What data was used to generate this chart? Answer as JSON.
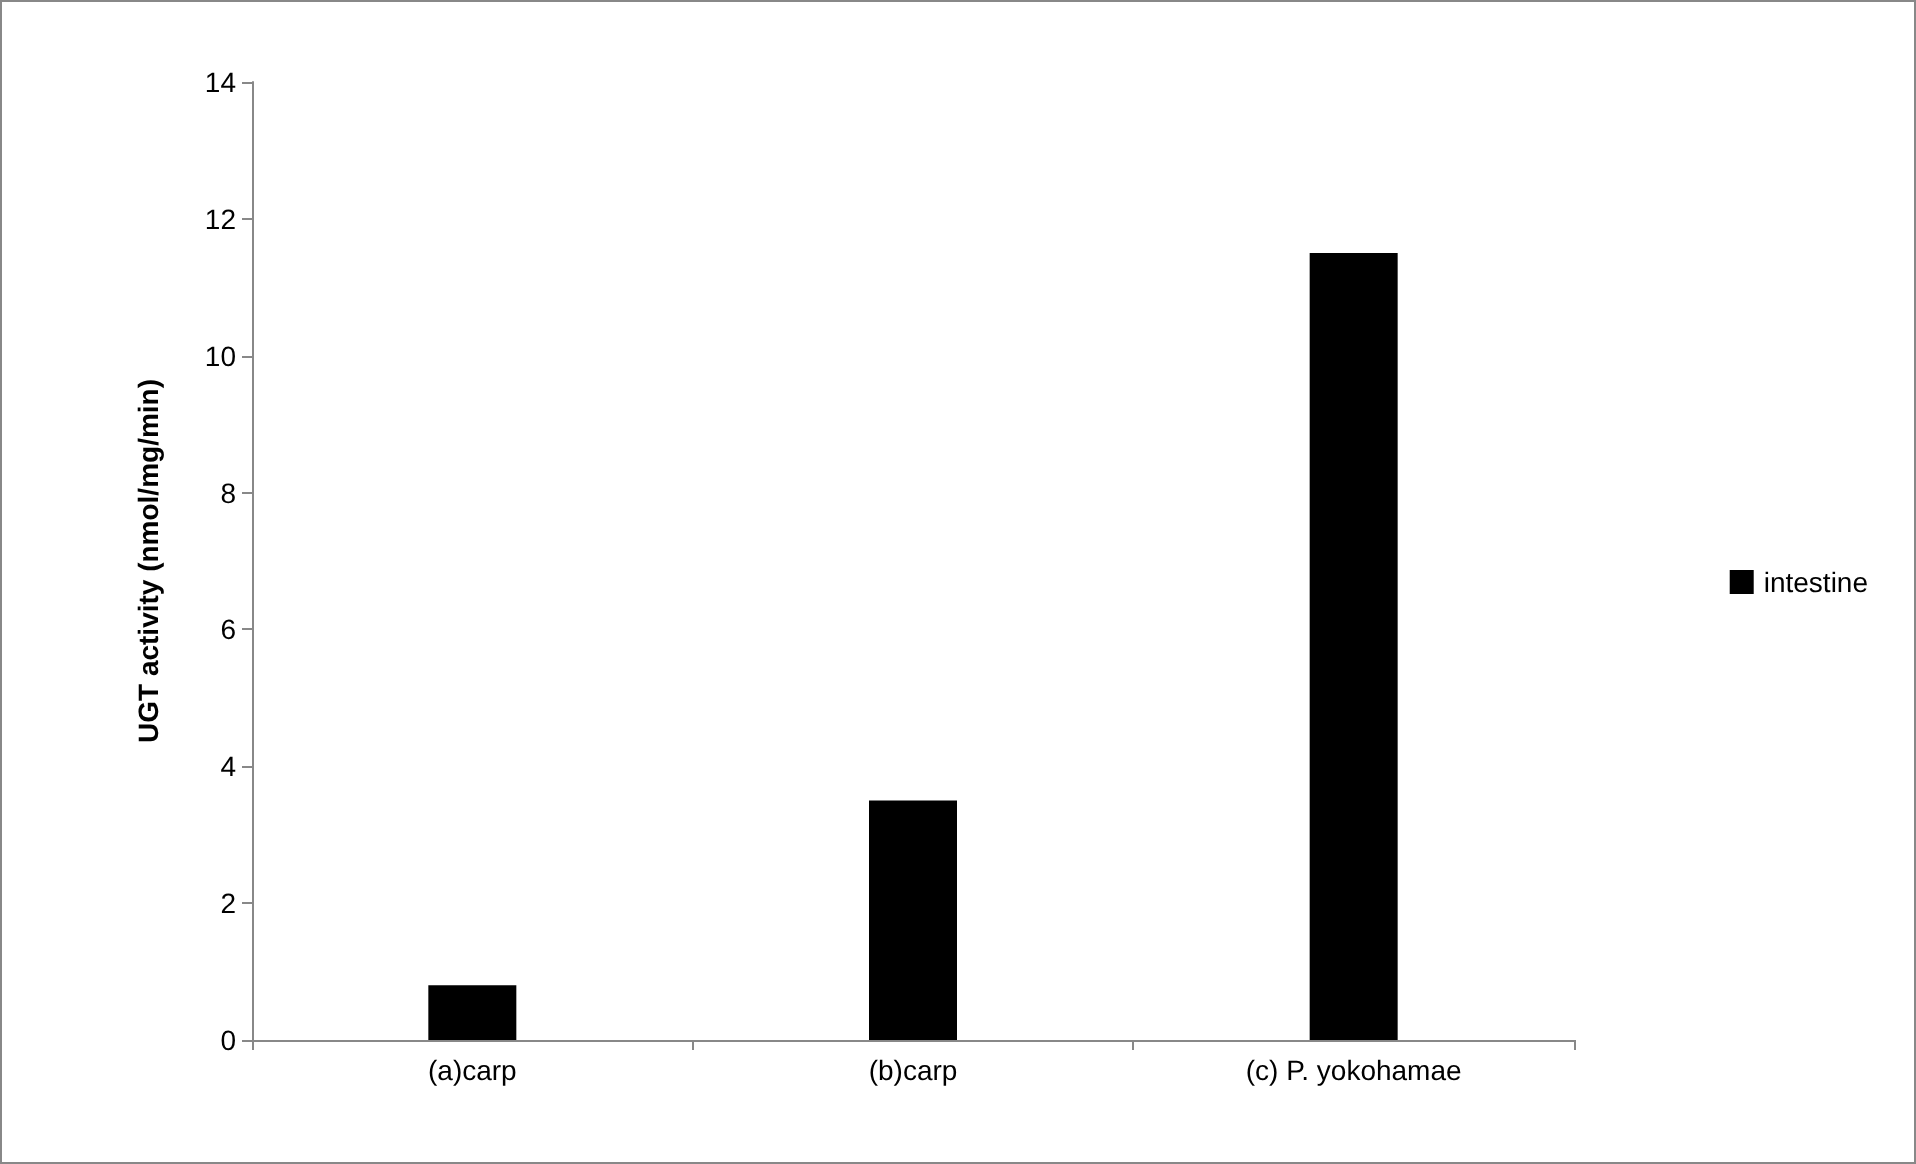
{
  "chart_data": {
    "type": "bar",
    "ylabel": "UGT activity (nmol/mg/min)",
    "categories": [
      "(a)carp",
      "(b)carp",
      "(c) P. yokohamae"
    ],
    "series": [
      {
        "name": "intestine",
        "color": "#000000",
        "values": [
          0.8,
          3.5,
          11.5
        ]
      }
    ],
    "ylim": [
      0,
      14
    ],
    "yticks": [
      0,
      2,
      4,
      6,
      8,
      10,
      12,
      14
    ],
    "grid": false,
    "legend": "right"
  }
}
